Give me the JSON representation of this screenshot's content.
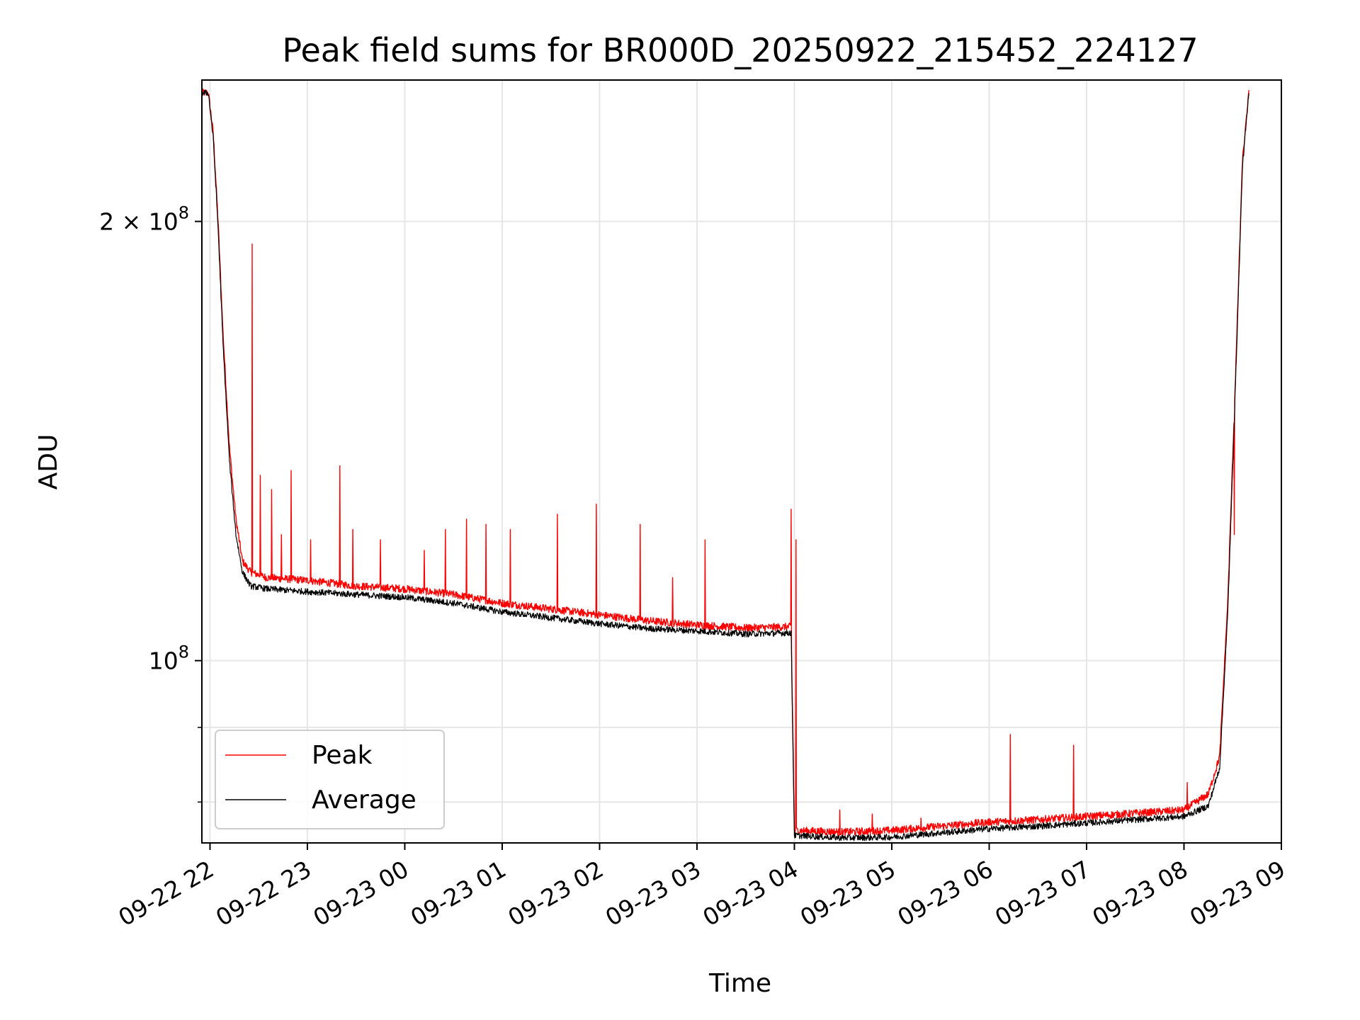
{
  "chart_data": {
    "type": "line",
    "title": "Peak field sums for BR000D_20250922_215452_224127",
    "xlabel": "Time",
    "ylabel": "ADU",
    "yscale": "log",
    "ylim": [
      75000000,
      250000000
    ],
    "xlim": [
      "2025-09-22T21:55:00",
      "2025-09-23T09:00:00"
    ],
    "grid": true,
    "legend_position": "lower-left",
    "x_ticks": [
      {
        "t": "2025-09-22T22:00",
        "label": "09-22 22"
      },
      {
        "t": "2025-09-22T23:00",
        "label": "09-22 23"
      },
      {
        "t": "2025-09-23T00:00",
        "label": "09-23 00"
      },
      {
        "t": "2025-09-23T01:00",
        "label": "09-23 01"
      },
      {
        "t": "2025-09-23T02:00",
        "label": "09-23 02"
      },
      {
        "t": "2025-09-23T03:00",
        "label": "09-23 03"
      },
      {
        "t": "2025-09-23T04:00",
        "label": "09-23 04"
      },
      {
        "t": "2025-09-23T05:00",
        "label": "09-23 05"
      },
      {
        "t": "2025-09-23T06:00",
        "label": "09-23 06"
      },
      {
        "t": "2025-09-23T07:00",
        "label": "09-23 07"
      },
      {
        "t": "2025-09-23T08:00",
        "label": "09-23 08"
      },
      {
        "t": "2025-09-23T09:00",
        "label": "09-23 09"
      }
    ],
    "y_ticks": [
      {
        "value": 100000000,
        "base": "10",
        "exp": "8"
      },
      {
        "value": 200000000,
        "base": "2 × 10",
        "exp": "8"
      }
    ],
    "y_minor_ticks": [
      80000000,
      90000000
    ],
    "series": [
      {
        "name": "Peak",
        "color": "#ff0000",
        "points": [
          [
            "2025-09-22T21:55",
            245000000
          ],
          [
            "2025-09-22T21:59",
            245000000
          ],
          [
            "2025-09-22T22:02",
            230000000
          ],
          [
            "2025-09-22T22:05",
            200000000
          ],
          [
            "2025-09-22T22:08",
            168000000
          ],
          [
            "2025-09-22T22:12",
            140000000
          ],
          [
            "2025-09-22T22:16",
            125000000
          ],
          [
            "2025-09-22T22:20",
            117000000
          ],
          [
            "2025-09-22T22:25",
            115000000
          ],
          [
            "2025-09-22T22:35",
            114000000
          ],
          [
            "2025-09-22T23:00",
            113500000
          ],
          [
            "2025-09-22T23:30",
            112500000
          ],
          [
            "2025-09-23T00:00",
            112000000
          ],
          [
            "2025-09-23T00:30",
            111000000
          ],
          [
            "2025-09-23T01:00",
            109500000
          ],
          [
            "2025-09-23T01:30",
            108500000
          ],
          [
            "2025-09-23T02:00",
            107500000
          ],
          [
            "2025-09-23T02:30",
            106500000
          ],
          [
            "2025-09-23T03:00",
            105800000
          ],
          [
            "2025-09-23T03:30",
            105300000
          ],
          [
            "2025-09-23T03:58",
            105500000
          ],
          [
            "2025-09-23T04:00",
            76500000
          ],
          [
            "2025-09-23T04:30",
            76300000
          ],
          [
            "2025-09-23T05:00",
            76500000
          ],
          [
            "2025-09-23T05:30",
            77000000
          ],
          [
            "2025-09-23T06:00",
            77500000
          ],
          [
            "2025-09-23T06:30",
            77800000
          ],
          [
            "2025-09-23T07:00",
            78200000
          ],
          [
            "2025-09-23T07:30",
            78600000
          ],
          [
            "2025-09-23T08:00",
            79000000
          ],
          [
            "2025-09-23T08:15",
            81000000
          ],
          [
            "2025-09-23T08:22",
            86000000
          ],
          [
            "2025-09-23T08:27",
            110000000
          ],
          [
            "2025-09-23T08:32",
            160000000
          ],
          [
            "2025-09-23T08:36",
            220000000
          ],
          [
            "2025-09-23T08:40",
            245000000
          ]
        ],
        "spikes": [
          [
            "2025-09-22T22:26",
            193000000
          ],
          [
            "2025-09-22T22:31",
            134000000
          ],
          [
            "2025-09-22T22:38",
            131000000
          ],
          [
            "2025-09-22T22:44",
            122000000
          ],
          [
            "2025-09-22T22:50",
            135000000
          ],
          [
            "2025-09-22T23:02",
            121000000
          ],
          [
            "2025-09-22T23:20",
            136000000
          ],
          [
            "2025-09-22T23:28",
            123000000
          ],
          [
            "2025-09-22T23:45",
            121000000
          ],
          [
            "2025-09-23T00:12",
            119000000
          ],
          [
            "2025-09-23T00:25",
            123000000
          ],
          [
            "2025-09-23T00:38",
            125000000
          ],
          [
            "2025-09-23T00:50",
            124000000
          ],
          [
            "2025-09-23T01:05",
            123000000
          ],
          [
            "2025-09-23T01:34",
            126000000
          ],
          [
            "2025-09-23T01:58",
            128000000
          ],
          [
            "2025-09-23T02:25",
            124000000
          ],
          [
            "2025-09-23T02:45",
            114000000
          ],
          [
            "2025-09-23T03:05",
            121000000
          ],
          [
            "2025-09-23T03:58",
            127000000
          ],
          [
            "2025-09-23T04:01",
            121000000
          ],
          [
            "2025-09-23T04:28",
            79000000
          ],
          [
            "2025-09-23T04:48",
            78500000
          ],
          [
            "2025-09-23T05:18",
            78000000
          ],
          [
            "2025-09-23T06:13",
            89000000
          ],
          [
            "2025-09-23T06:52",
            87500000
          ],
          [
            "2025-09-23T07:38",
            79000000
          ],
          [
            "2025-09-23T08:02",
            82500000
          ],
          [
            "2025-09-23T08:20",
            84000000
          ],
          [
            "2025-09-23T08:31",
            122000000
          ]
        ]
      },
      {
        "name": "Average",
        "color": "#000000",
        "points": [
          [
            "2025-09-22T21:55",
            245000000
          ],
          [
            "2025-09-22T21:59",
            245000000
          ],
          [
            "2025-09-22T22:02",
            228000000
          ],
          [
            "2025-09-22T22:05",
            198000000
          ],
          [
            "2025-09-22T22:08",
            165000000
          ],
          [
            "2025-09-22T22:12",
            137000000
          ],
          [
            "2025-09-22T22:16",
            122000000
          ],
          [
            "2025-09-22T22:20",
            115000000
          ],
          [
            "2025-09-22T22:25",
            112500000
          ],
          [
            "2025-09-22T22:35",
            112000000
          ],
          [
            "2025-09-22T23:00",
            111500000
          ],
          [
            "2025-09-22T23:30",
            111000000
          ],
          [
            "2025-09-23T00:00",
            110500000
          ],
          [
            "2025-09-23T00:30",
            109500000
          ],
          [
            "2025-09-23T01:00",
            108000000
          ],
          [
            "2025-09-23T01:30",
            107000000
          ],
          [
            "2025-09-23T02:00",
            106000000
          ],
          [
            "2025-09-23T02:30",
            105200000
          ],
          [
            "2025-09-23T03:00",
            104800000
          ],
          [
            "2025-09-23T03:30",
            104300000
          ],
          [
            "2025-09-23T03:58",
            104500000
          ],
          [
            "2025-09-23T04:00",
            75900000
          ],
          [
            "2025-09-23T04:30",
            75600000
          ],
          [
            "2025-09-23T05:00",
            75700000
          ],
          [
            "2025-09-23T05:30",
            76200000
          ],
          [
            "2025-09-23T06:00",
            76700000
          ],
          [
            "2025-09-23T06:30",
            77000000
          ],
          [
            "2025-09-23T07:00",
            77400000
          ],
          [
            "2025-09-23T07:30",
            77800000
          ],
          [
            "2025-09-23T08:00",
            78200000
          ],
          [
            "2025-09-23T08:15",
            79500000
          ],
          [
            "2025-09-23T08:22",
            84500000
          ],
          [
            "2025-09-23T08:27",
            108000000
          ],
          [
            "2025-09-23T08:32",
            158000000
          ],
          [
            "2025-09-23T08:36",
            218000000
          ],
          [
            "2025-09-23T08:40",
            245000000
          ]
        ]
      }
    ]
  }
}
